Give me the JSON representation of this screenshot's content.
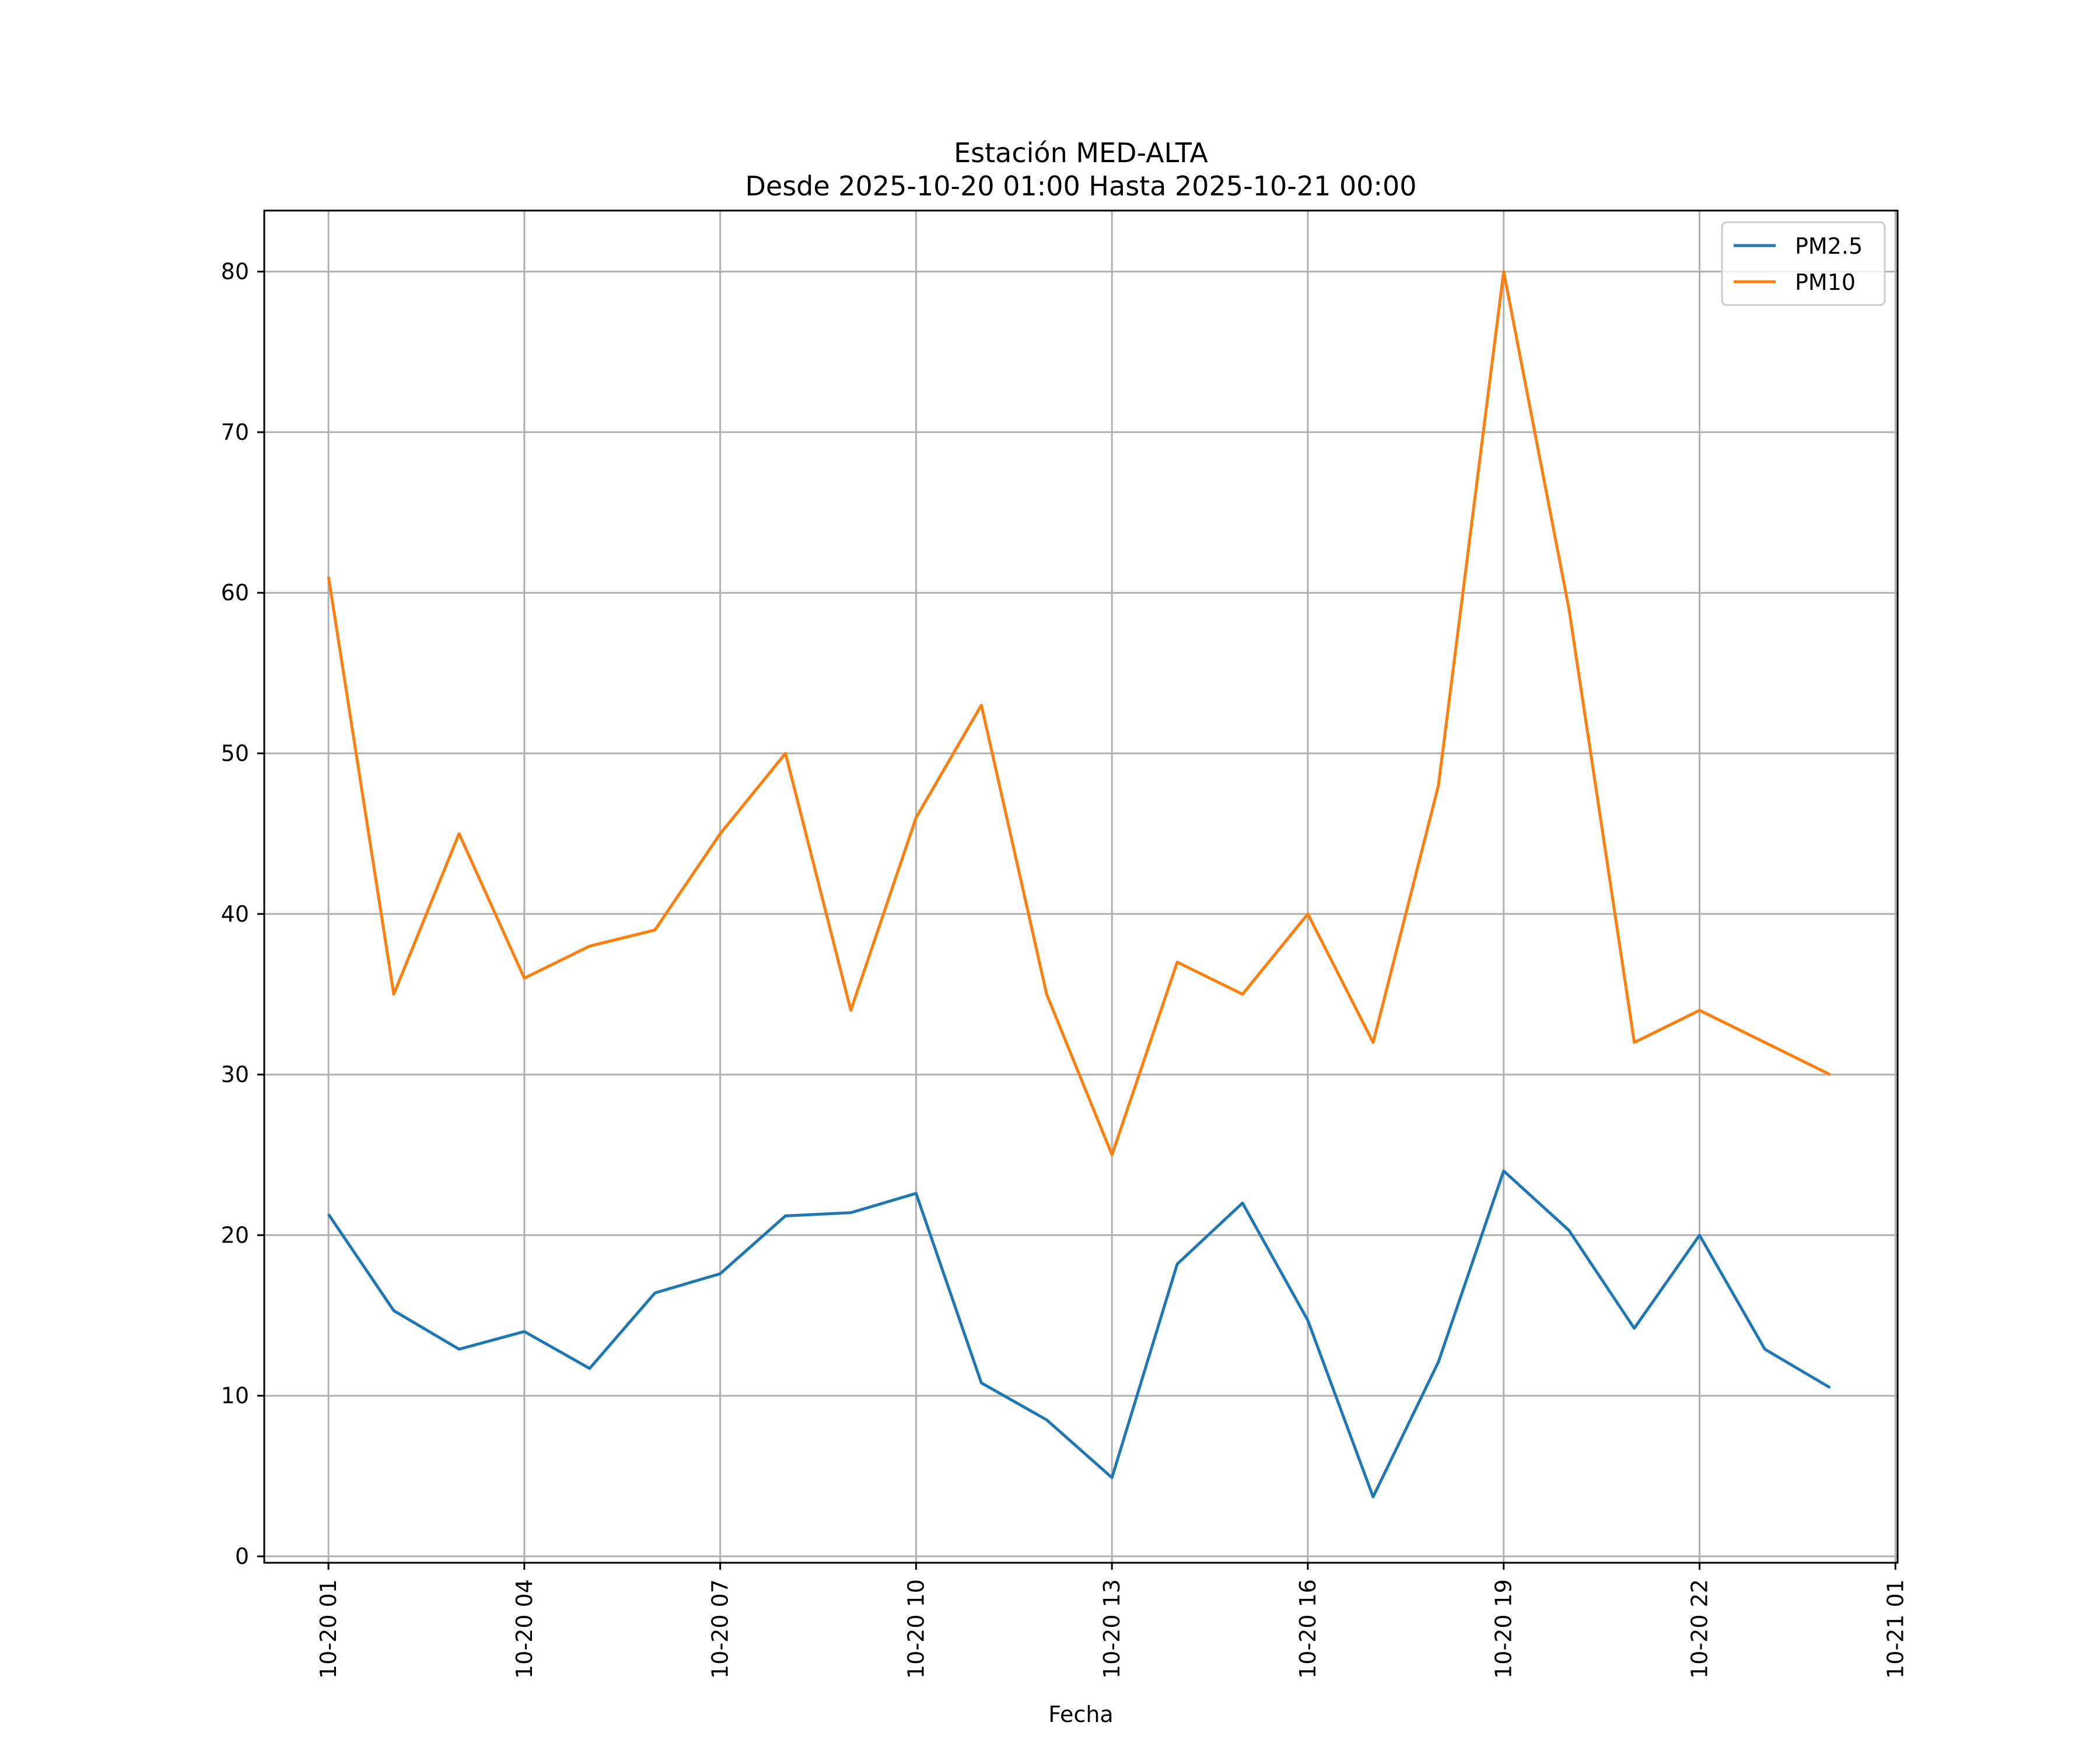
{
  "chart_data": {
    "type": "line",
    "title": "Estación MED-ALTA",
    "subtitle": "Desde 2025-10-20 01:00 Hasta 2025-10-21 00:00",
    "xlabel": "Fecha",
    "ylabel": "",
    "x": [
      "2025-10-20 01:00",
      "2025-10-20 02:00",
      "2025-10-20 03:00",
      "2025-10-20 04:00",
      "2025-10-20 05:00",
      "2025-10-20 06:00",
      "2025-10-20 07:00",
      "2025-10-20 08:00",
      "2025-10-20 09:00",
      "2025-10-20 10:00",
      "2025-10-20 11:00",
      "2025-10-20 12:00",
      "2025-10-20 13:00",
      "2025-10-20 14:00",
      "2025-10-20 15:00",
      "2025-10-20 16:00",
      "2025-10-20 17:00",
      "2025-10-20 18:00",
      "2025-10-20 19:00",
      "2025-10-20 20:00",
      "2025-10-20 21:00",
      "2025-10-20 22:00",
      "2025-10-20 23:00",
      "2025-10-21 00:00"
    ],
    "series": [
      {
        "name": "PM2.5",
        "color": "#1f77b4",
        "values": [
          21.3,
          15.3,
          12.9,
          14.0,
          11.7,
          16.4,
          17.6,
          21.2,
          21.4,
          22.6,
          10.8,
          8.5,
          4.9,
          18.2,
          22.0,
          14.7,
          3.7,
          12.1,
          24.0,
          20.3,
          14.2,
          20.0,
          12.9,
          10.5
        ]
      },
      {
        "name": "PM10",
        "color": "#ff7f0e",
        "values": [
          61,
          35,
          45,
          36,
          38,
          39,
          45,
          50,
          34,
          46,
          53,
          35,
          25,
          37,
          35,
          40,
          32,
          48,
          80,
          59,
          32,
          34,
          32,
          30
        ]
      }
    ],
    "xticks": [
      {
        "value": "2025-10-20 01:00",
        "label": "10-20 01"
      },
      {
        "value": "2025-10-20 04:00",
        "label": "10-20 04"
      },
      {
        "value": "2025-10-20 07:00",
        "label": "10-20 07"
      },
      {
        "value": "2025-10-20 10:00",
        "label": "10-20 10"
      },
      {
        "value": "2025-10-20 13:00",
        "label": "10-20 13"
      },
      {
        "value": "2025-10-20 16:00",
        "label": "10-20 16"
      },
      {
        "value": "2025-10-20 19:00",
        "label": "10-20 19"
      },
      {
        "value": "2025-10-20 22:00",
        "label": "10-20 22"
      },
      {
        "value": "2025-10-21 01:00",
        "label": "10-21 01"
      }
    ],
    "yticks": [
      0,
      10,
      20,
      30,
      40,
      50,
      60,
      70,
      80
    ],
    "xlim": [
      "2025-10-20 00:01",
      "2025-10-21 01:02"
    ],
    "ylim": [
      -0.4,
      83.8
    ],
    "grid": true,
    "legend_position": "top-right"
  }
}
